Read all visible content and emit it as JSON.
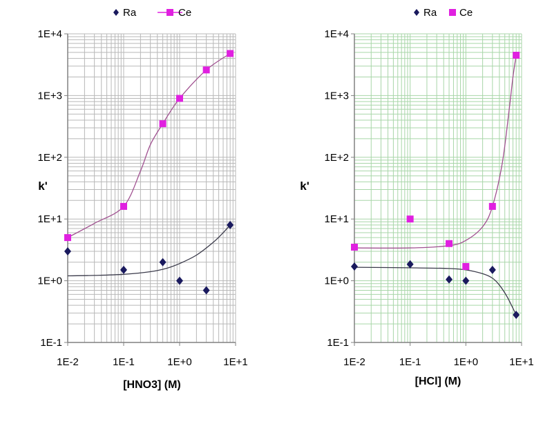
{
  "chart_data": [
    {
      "type": "scatter",
      "x_scale": "log",
      "y_scale": "log",
      "xlabel": "[HNO3] (M)",
      "ylabel": "k'",
      "xlim": [
        0.01,
        10
      ],
      "ylim": [
        0.1,
        10000
      ],
      "x_tick_labels": [
        "1E-2",
        "1E-1",
        "1E+0",
        "1E+1"
      ],
      "y_tick_labels": [
        "1E-1",
        "1E+0",
        "1E+1",
        "1E+2",
        "1E+3",
        "1E+4"
      ],
      "grid": true,
      "legend": "top",
      "series": [
        {
          "name": "Ra",
          "marker": "diamond",
          "color": "#1a1a5e",
          "points": [
            [
              0.01,
              3.0
            ],
            [
              0.1,
              1.5
            ],
            [
              0.5,
              2.0
            ],
            [
              1.0,
              1.0
            ],
            [
              3.0,
              0.7
            ],
            [
              8.0,
              8.0
            ]
          ],
          "trend": [
            [
              0.01,
              1.2
            ],
            [
              0.03,
              1.22
            ],
            [
              0.1,
              1.27
            ],
            [
              0.3,
              1.4
            ],
            [
              0.6,
              1.6
            ],
            [
              1.0,
              1.9
            ],
            [
              2.0,
              2.6
            ],
            [
              4.0,
              4.2
            ],
            [
              6.0,
              6.0
            ],
            [
              8.0,
              8.0
            ]
          ]
        },
        {
          "name": "Ce",
          "marker": "square",
          "line": true,
          "color": "#e020e0",
          "points": [
            [
              0.01,
              5.0
            ],
            [
              0.1,
              16
            ],
            [
              0.5,
              350
            ],
            [
              1.0,
              900
            ],
            [
              3.0,
              2600
            ],
            [
              8.0,
              4800
            ]
          ],
          "trend": [
            [
              0.01,
              5.0
            ],
            [
              0.03,
              8.5
            ],
            [
              0.1,
              16
            ],
            [
              0.2,
              60
            ],
            [
              0.3,
              160
            ],
            [
              0.5,
              350
            ],
            [
              1.0,
              900
            ],
            [
              3.0,
              2600
            ],
            [
              8.0,
              4800
            ]
          ]
        }
      ]
    },
    {
      "type": "scatter",
      "x_scale": "log",
      "y_scale": "log",
      "xlabel": "[HCl] (M)",
      "ylabel": "k'",
      "xlim": [
        0.01,
        10
      ],
      "ylim": [
        0.1,
        10000
      ],
      "x_tick_labels": [
        "1E-2",
        "1E-1",
        "1E+0",
        "1E+1"
      ],
      "y_tick_labels": [
        "1E-1",
        "1E+0",
        "1E+1",
        "1E+2",
        "1E+3",
        "1E+4"
      ],
      "grid": true,
      "legend": "top",
      "series": [
        {
          "name": "Ra",
          "marker": "diamond",
          "color": "#1a1a5e",
          "points": [
            [
              0.01,
              1.7
            ],
            [
              0.1,
              1.85
            ],
            [
              0.5,
              1.05
            ],
            [
              1.0,
              1.0
            ],
            [
              3.0,
              1.5
            ],
            [
              8.0,
              0.28
            ]
          ],
          "trend": [
            [
              0.01,
              1.65
            ],
            [
              0.1,
              1.62
            ],
            [
              0.5,
              1.58
            ],
            [
              1.0,
              1.5
            ],
            [
              2.0,
              1.3
            ],
            [
              3.0,
              1.1
            ],
            [
              4.0,
              0.85
            ],
            [
              5.5,
              0.55
            ],
            [
              8.0,
              0.28
            ]
          ]
        },
        {
          "name": "Ce",
          "marker": "square",
          "color": "#e020e0",
          "points": [
            [
              0.01,
              3.5
            ],
            [
              0.1,
              10
            ],
            [
              0.5,
              4.0
            ],
            [
              1.0,
              1.7
            ],
            [
              3.0,
              16
            ],
            [
              8.0,
              4500
            ]
          ],
          "trend": [
            [
              0.01,
              3.4
            ],
            [
              0.1,
              3.4
            ],
            [
              0.5,
              3.7
            ],
            [
              1.0,
              4.5
            ],
            [
              2.0,
              7.5
            ],
            [
              3.0,
              16
            ],
            [
              4.5,
              80
            ],
            [
              6.0,
              600
            ],
            [
              7.0,
              2000
            ],
            [
              8.0,
              4500
            ]
          ]
        }
      ]
    }
  ]
}
